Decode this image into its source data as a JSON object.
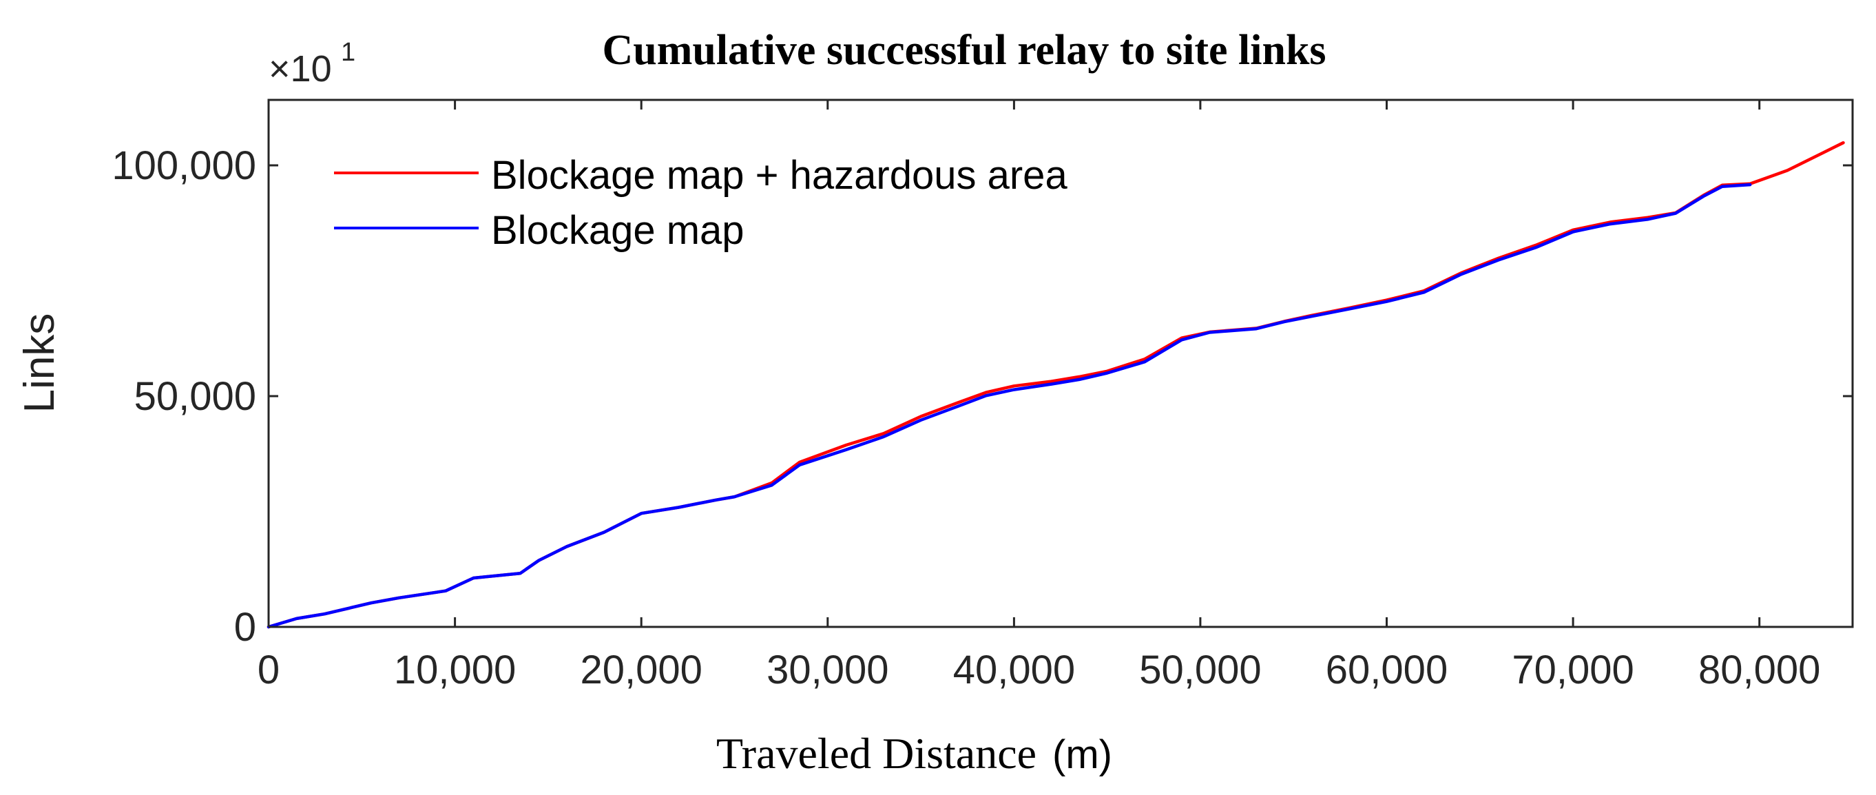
{
  "chart_data": {
    "type": "line",
    "title": "Cumulative successful relay to site links",
    "xlabel": "Traveled Distance",
    "xlabel_unit": "(m)",
    "ylabel": "Links",
    "y_multiplier": {
      "base": "×10",
      "exponent": "1"
    },
    "xlim": [
      0,
      85000
    ],
    "ylim": [
      0,
      100000
    ],
    "xticks": [
      0,
      10000,
      20000,
      30000,
      40000,
      50000,
      60000,
      70000,
      80000
    ],
    "xtick_labels": [
      "0",
      "10,000",
      "20,000",
      "30,000",
      "40,000",
      "50,000",
      "60,000",
      "70,000",
      "80,000"
    ],
    "yticks": [
      0,
      50000,
      100000
    ],
    "ytick_labels": [
      "0",
      "50,000",
      "100,000"
    ],
    "grid": false,
    "legend_position": "top-left",
    "series": [
      {
        "name": "Blockage map + hazardous area",
        "color": "#ff0000",
        "x": [
          0,
          1500,
          3000,
          5500,
          7000,
          9500,
          11000,
          13500,
          14500,
          16000,
          18000,
          20000,
          22000,
          24000,
          25000,
          27000,
          28500,
          31000,
          33000,
          35000,
          37000,
          38500,
          40000,
          42000,
          43500,
          45000,
          47000,
          49000,
          50500,
          53000,
          54500,
          56000,
          58000,
          60000,
          62000,
          64000,
          66000,
          68000,
          70000,
          72000,
          74000,
          75500,
          77000,
          78000,
          79500,
          81500,
          83500,
          84500
        ],
        "y": [
          0,
          1800,
          2800,
          5200,
          6300,
          7800,
          10600,
          11600,
          14400,
          17400,
          20500,
          24600,
          25900,
          27500,
          28200,
          31200,
          35700,
          39400,
          41900,
          45600,
          48600,
          50800,
          52200,
          53200,
          54200,
          55400,
          58000,
          62600,
          63900,
          64700,
          66200,
          67500,
          69100,
          70800,
          72800,
          76700,
          79900,
          82700,
          86000,
          87700,
          88700,
          89700,
          93500,
          95700,
          96000,
          98900,
          102900,
          104900
        ]
      },
      {
        "name": "Blockage map",
        "color": "#0000ff",
        "x": [
          0,
          1500,
          3000,
          5500,
          7000,
          9500,
          11000,
          13500,
          14500,
          16000,
          18000,
          20000,
          22000,
          24000,
          25000,
          27000,
          28500,
          31000,
          33000,
          35000,
          37000,
          38500,
          40000,
          42000,
          43500,
          45000,
          47000,
          49000,
          50500,
          53000,
          54500,
          56000,
          58000,
          60000,
          62000,
          64000,
          66000,
          68000,
          70000,
          72000,
          74000,
          75500,
          77000,
          78000,
          79500
        ],
        "y": [
          0,
          1800,
          2800,
          5200,
          6300,
          7800,
          10600,
          11600,
          14400,
          17400,
          20500,
          24600,
          25900,
          27500,
          28200,
          30700,
          35100,
          38400,
          41200,
          44800,
          47800,
          50100,
          51400,
          52600,
          53600,
          55000,
          57400,
          62200,
          63800,
          64600,
          66100,
          67300,
          68900,
          70500,
          72500,
          76400,
          79500,
          82200,
          85600,
          87300,
          88300,
          89600,
          93300,
          95400,
          95800
        ]
      }
    ]
  }
}
